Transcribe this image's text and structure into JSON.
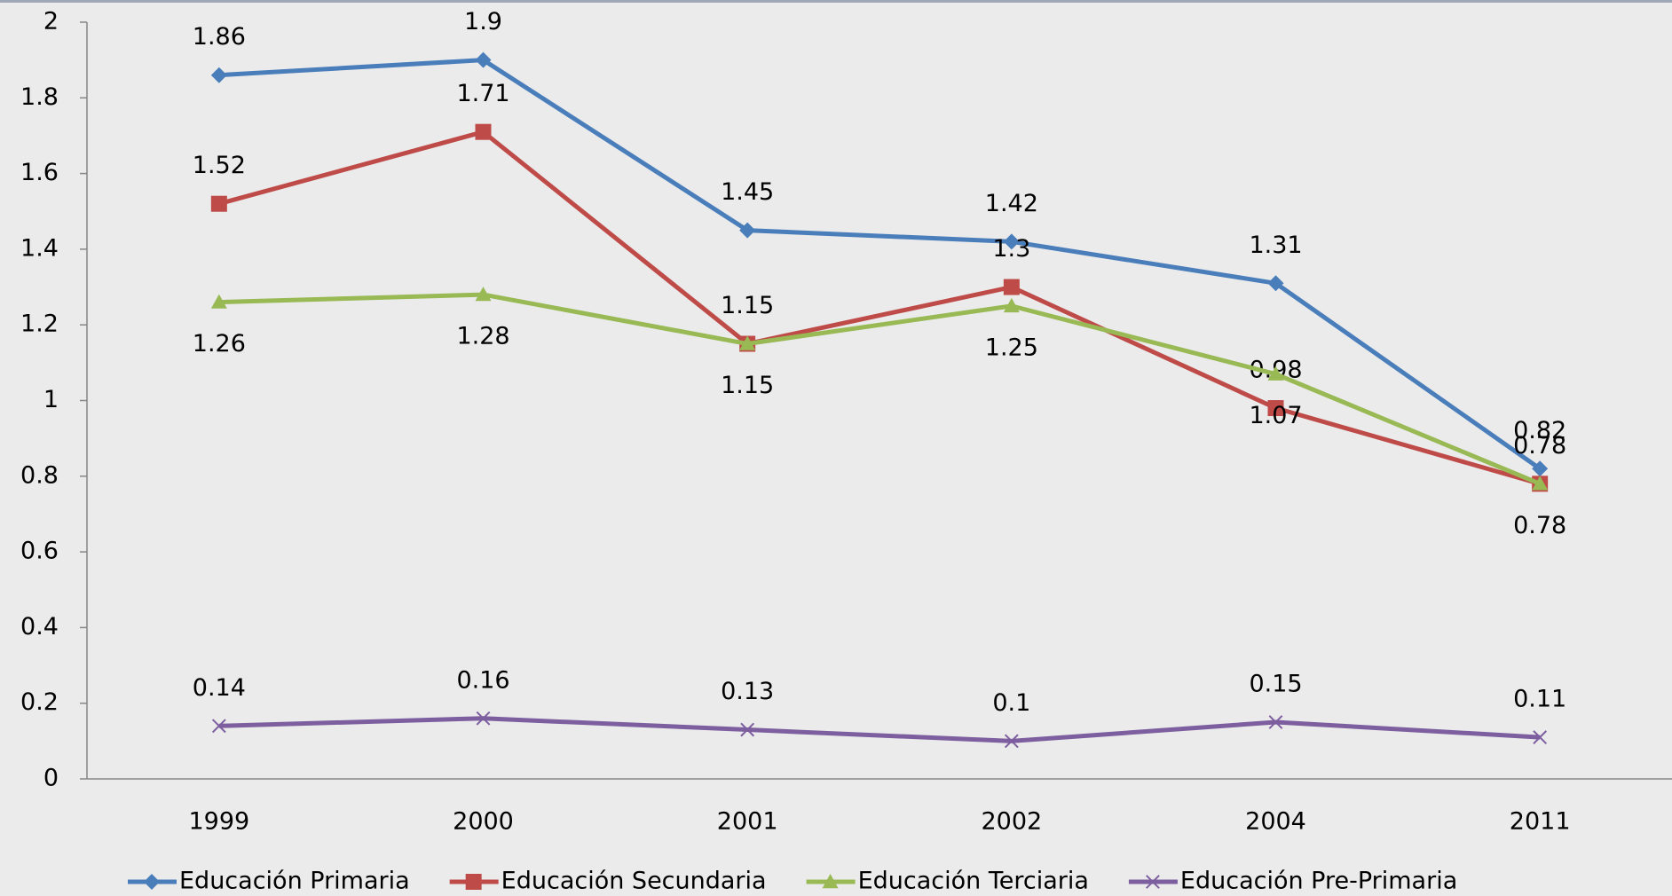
{
  "chart_data": {
    "type": "line",
    "categories": [
      "1999",
      "2000",
      "2001",
      "2002",
      "2004",
      "2011"
    ],
    "series": [
      {
        "name": "Educación Primaria",
        "color": "#4a7ebb",
        "marker": "diamond",
        "values": [
          1.86,
          1.9,
          1.45,
          1.42,
          1.31,
          0.82
        ]
      },
      {
        "name": "Educación Secundaria",
        "color": "#be4b48",
        "marker": "square",
        "values": [
          1.52,
          1.71,
          1.15,
          1.3,
          0.98,
          0.78
        ]
      },
      {
        "name": "Educación Terciaria",
        "color": "#98b954",
        "marker": "triangle",
        "values": [
          1.26,
          1.28,
          1.15,
          1.25,
          1.07,
          0.78
        ]
      },
      {
        "name": "Educación Pre-Primaria",
        "color": "#7d5fa0",
        "marker": "x",
        "values": [
          0.14,
          0.16,
          0.13,
          0.1,
          0.15,
          0.11
        ]
      }
    ],
    "ylim": [
      0,
      2
    ],
    "yticks": [
      0,
      0.2,
      0.4,
      0.6,
      0.8,
      1,
      1.2,
      1.4,
      1.6,
      1.8,
      2
    ],
    "legend": "bottom",
    "data_labels": true
  }
}
